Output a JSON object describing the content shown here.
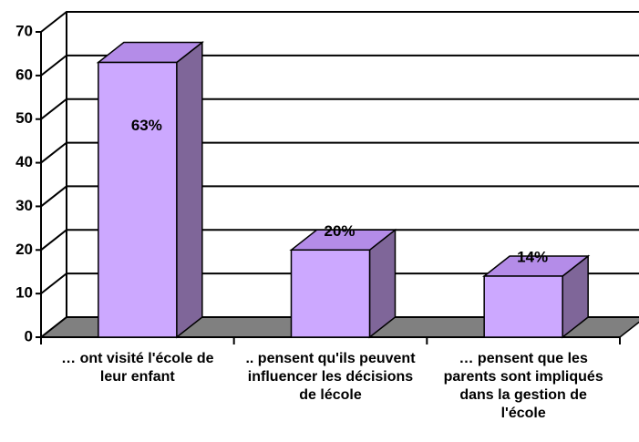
{
  "chart_data": {
    "type": "bar3d",
    "categories": [
      "… ont visité l'école de leur enfant",
      ".. pensent qu'ils peuvent influencer les décisions de lécole",
      "… pensent que les parents sont impliqués dans la gestion de l'école"
    ],
    "values": [
      63,
      20,
      14
    ],
    "value_labels": [
      "63%",
      "20%",
      "14%"
    ],
    "color": "#cca8ff",
    "ylim": [
      0,
      70
    ],
    "yticks": [
      0,
      10,
      20,
      30,
      40,
      50,
      60,
      70
    ],
    "grid": true
  }
}
